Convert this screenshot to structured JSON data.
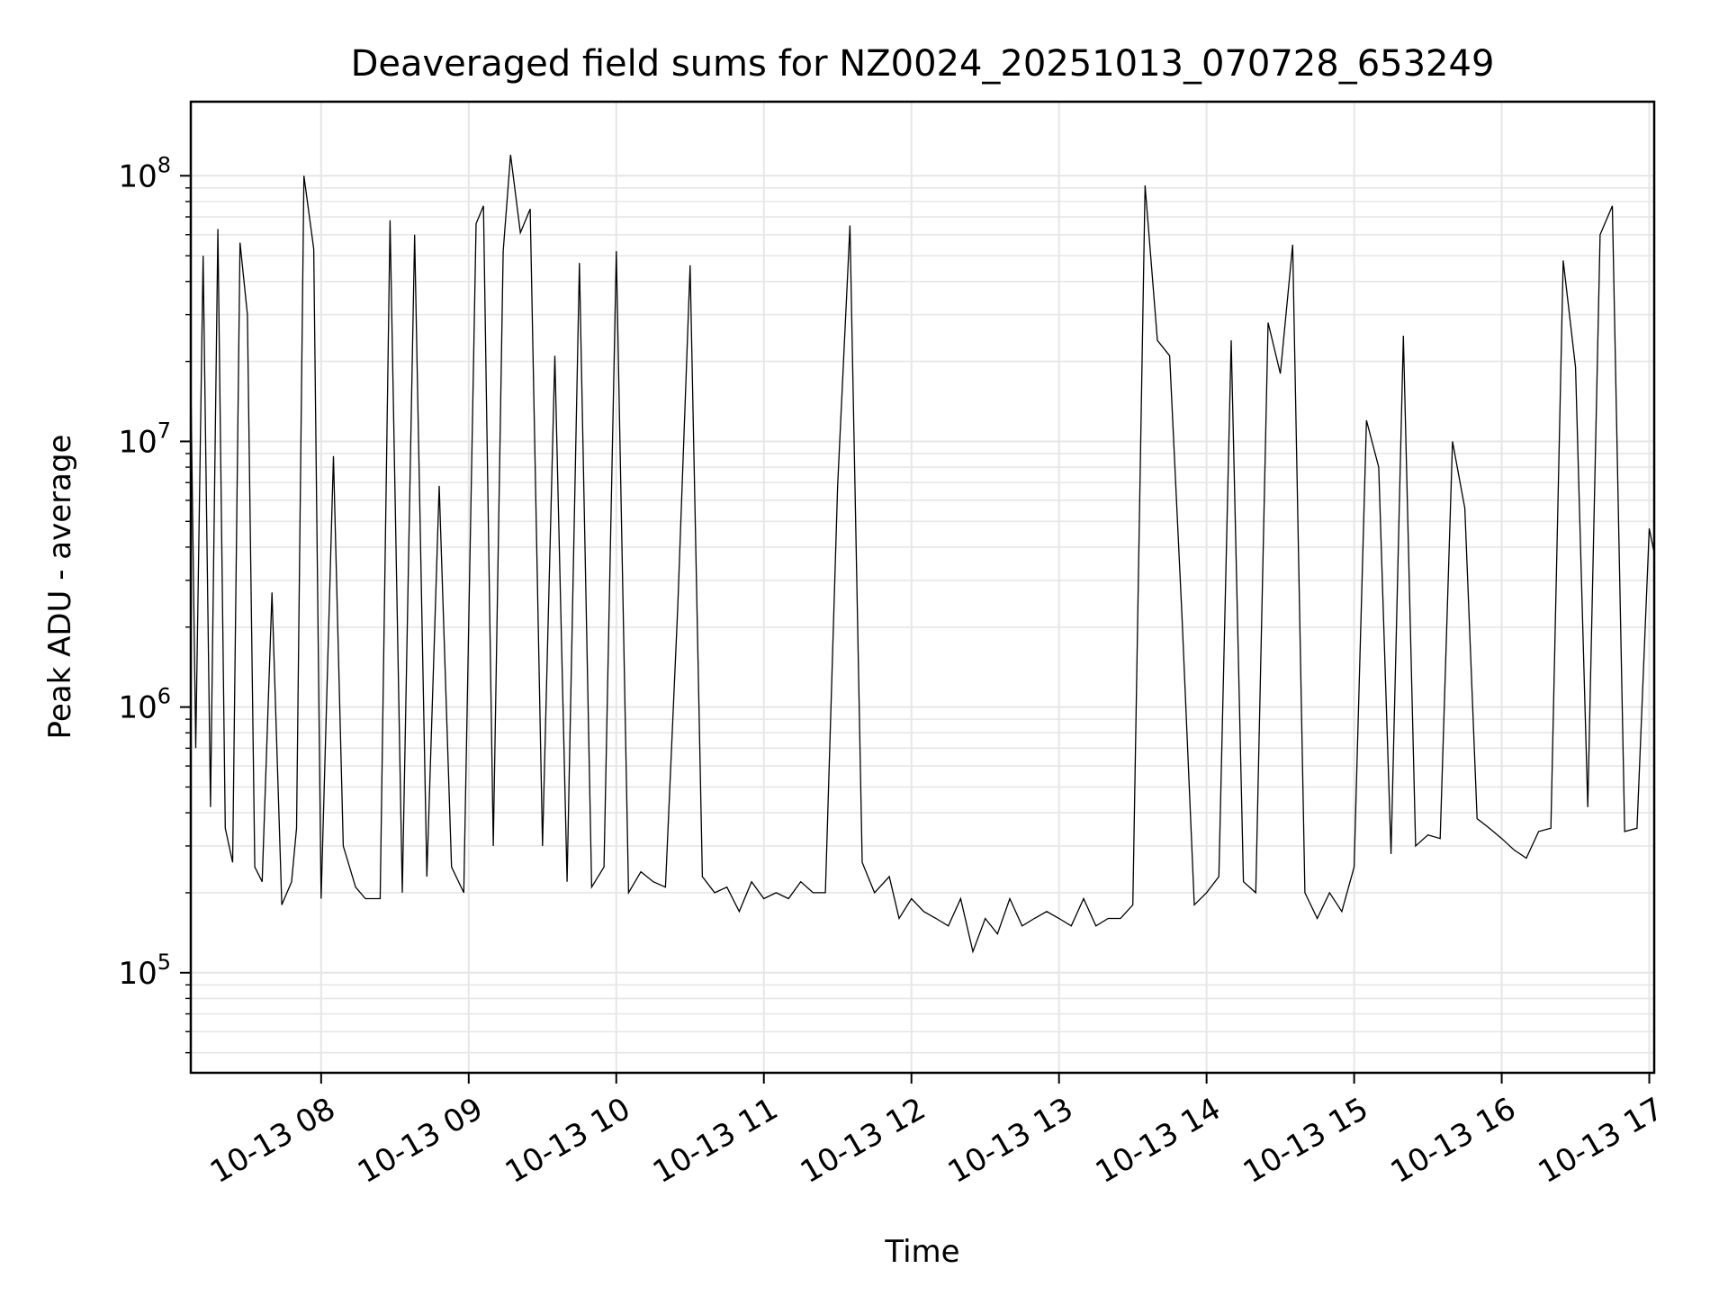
{
  "chart_data": {
    "type": "line",
    "title": "Deaveraged field sums for NZ0024_20251013_070728_653249",
    "xlabel": "Time",
    "ylabel": "Peak ADU - average",
    "yscale": "log",
    "ylim": [
      42000,
      190000000
    ],
    "xlim": [
      "2025-10-13 07:07",
      "2025-10-13 17:02"
    ],
    "grid": true,
    "line_color": "#000000",
    "x_tick_labels": [
      "10-13 08",
      "10-13 09",
      "10-13 10",
      "10-13 11",
      "10-13 12",
      "10-13 13",
      "10-13 14",
      "10-13 15",
      "10-13 16",
      "10-13 17"
    ],
    "y_tick_labels": [
      {
        "base": "10",
        "exp": "5",
        "value": 100000
      },
      {
        "base": "10",
        "exp": "6",
        "value": 1000000
      },
      {
        "base": "10",
        "exp": "7",
        "value": 10000000
      },
      {
        "base": "10",
        "exp": "8",
        "value": 100000000
      }
    ],
    "series": [
      {
        "x": [
          "2025-10-13 07:07",
          "2025-10-13 07:09",
          "2025-10-13 07:12",
          "2025-10-13 07:15",
          "2025-10-13 07:18",
          "2025-10-13 07:21",
          "2025-10-13 07:24",
          "2025-10-13 07:27",
          "2025-10-13 07:30",
          "2025-10-13 07:33",
          "2025-10-13 07:36",
          "2025-10-13 07:40",
          "2025-10-13 07:44",
          "2025-10-13 07:48",
          "2025-10-13 07:50",
          "2025-10-13 07:53",
          "2025-10-13 07:57",
          "2025-10-13 08:00",
          "2025-10-13 08:05",
          "2025-10-13 08:09",
          "2025-10-13 08:14",
          "2025-10-13 08:18",
          "2025-10-13 08:24",
          "2025-10-13 08:28",
          "2025-10-13 08:33",
          "2025-10-13 08:38",
          "2025-10-13 08:43",
          "2025-10-13 08:48",
          "2025-10-13 08:53",
          "2025-10-13 08:58",
          "2025-10-13 09:03",
          "2025-10-13 09:06",
          "2025-10-13 09:10",
          "2025-10-13 09:14",
          "2025-10-13 09:17",
          "2025-10-13 09:21",
          "2025-10-13 09:25",
          "2025-10-13 09:30",
          "2025-10-13 09:35",
          "2025-10-13 09:40",
          "2025-10-13 09:45",
          "2025-10-13 09:50",
          "2025-10-13 09:55",
          "2025-10-13 10:00",
          "2025-10-13 10:05",
          "2025-10-13 10:10",
          "2025-10-13 10:15",
          "2025-10-13 10:20",
          "2025-10-13 10:25",
          "2025-10-13 10:30",
          "2025-10-13 10:35",
          "2025-10-13 10:40",
          "2025-10-13 10:45",
          "2025-10-13 10:50",
          "2025-10-13 10:55",
          "2025-10-13 11:00",
          "2025-10-13 11:05",
          "2025-10-13 11:10",
          "2025-10-13 11:15",
          "2025-10-13 11:20",
          "2025-10-13 11:25",
          "2025-10-13 11:30",
          "2025-10-13 11:35",
          "2025-10-13 11:40",
          "2025-10-13 11:45",
          "2025-10-13 11:51",
          "2025-10-13 11:55",
          "2025-10-13 12:00",
          "2025-10-13 12:05",
          "2025-10-13 12:10",
          "2025-10-13 12:15",
          "2025-10-13 12:20",
          "2025-10-13 12:25",
          "2025-10-13 12:30",
          "2025-10-13 12:35",
          "2025-10-13 12:40",
          "2025-10-13 12:45",
          "2025-10-13 12:50",
          "2025-10-13 12:55",
          "2025-10-13 13:00",
          "2025-10-13 13:05",
          "2025-10-13 13:10",
          "2025-10-13 13:15",
          "2025-10-13 13:20",
          "2025-10-13 13:25",
          "2025-10-13 13:30",
          "2025-10-13 13:35",
          "2025-10-13 13:40",
          "2025-10-13 13:45",
          "2025-10-13 13:50",
          "2025-10-13 13:55",
          "2025-10-13 14:00",
          "2025-10-13 14:05",
          "2025-10-13 14:10",
          "2025-10-13 14:15",
          "2025-10-13 14:20",
          "2025-10-13 14:25",
          "2025-10-13 14:30",
          "2025-10-13 14:35",
          "2025-10-13 14:40",
          "2025-10-13 14:45",
          "2025-10-13 14:50",
          "2025-10-13 14:55",
          "2025-10-13 15:00",
          "2025-10-13 15:05",
          "2025-10-13 15:10",
          "2025-10-13 15:15",
          "2025-10-13 15:20",
          "2025-10-13 15:25",
          "2025-10-13 15:30",
          "2025-10-13 15:35",
          "2025-10-13 15:40",
          "2025-10-13 15:45",
          "2025-10-13 15:50",
          "2025-10-13 15:55",
          "2025-10-13 16:00",
          "2025-10-13 16:05",
          "2025-10-13 16:10",
          "2025-10-13 16:15",
          "2025-10-13 16:20",
          "2025-10-13 16:25",
          "2025-10-13 16:30",
          "2025-10-13 16:35",
          "2025-10-13 16:40",
          "2025-10-13 16:45",
          "2025-10-13 16:50",
          "2025-10-13 16:55",
          "2025-10-13 17:00",
          "2025-10-13 17:02"
        ],
        "values": [
          17000000,
          700000,
          50000000,
          420000,
          63000000,
          350000,
          260000,
          56000000,
          30000000,
          250000,
          220000,
          2700000,
          180000,
          220000,
          350000,
          100000000,
          53000000,
          190000,
          8800000,
          300000,
          210000,
          190000,
          190000,
          68000000,
          200000,
          60000000,
          230000,
          6800000,
          250000,
          200000,
          66000000,
          77000000,
          300000,
          52000000,
          120000000,
          61000000,
          75000000,
          300000,
          21000000,
          220000,
          47000000,
          210000,
          250000,
          52000000,
          200000,
          240000,
          220000,
          210000,
          2400000,
          46000000,
          230000,
          200000,
          210000,
          170000,
          220000,
          190000,
          200000,
          190000,
          220000,
          200000,
          200000,
          6800000,
          65000000,
          260000,
          200000,
          230000,
          160000,
          190000,
          170000,
          160000,
          150000,
          190000,
          120000,
          160000,
          140000,
          190000,
          150000,
          160000,
          170000,
          160000,
          150000,
          190000,
          150000,
          160000,
          160000,
          180000,
          92000000,
          24000000,
          21000000,
          2200000,
          180000,
          200000,
          230000,
          24000000,
          220000,
          200000,
          28000000,
          18000000,
          55000000,
          200000,
          160000,
          200000,
          170000,
          250000,
          12000000,
          8000000,
          280000,
          25000000,
          300000,
          330000,
          320000,
          10000000,
          5600000,
          380000,
          350000,
          320000,
          290000,
          270000,
          340000,
          350000,
          48000000,
          19000000,
          420000,
          60000000,
          77000000,
          340000,
          350000,
          4700000,
          3800000
        ]
      }
    ]
  }
}
